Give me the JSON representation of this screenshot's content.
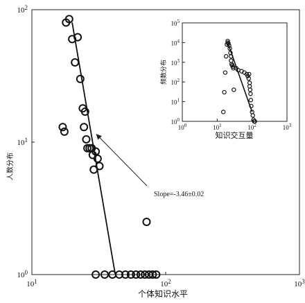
{
  "chart_data": [
    {
      "type": "scatter",
      "panel": "main",
      "xscale": "log",
      "yscale": "log",
      "xlim": [
        10,
        1000
      ],
      "ylim": [
        1,
        100
      ],
      "xlabel": "个体知识水平",
      "ylabel": "人数分布",
      "x_ticks": [
        {
          "value": 10,
          "base": "10",
          "exp": "1"
        },
        {
          "value": 100,
          "base": "10",
          "exp": "2"
        },
        {
          "value": 1000,
          "base": "10",
          "exp": "3"
        }
      ],
      "y_ticks": [
        {
          "value": 1,
          "base": "10",
          "exp": "0"
        },
        {
          "value": 10,
          "base": "10",
          "exp": "1"
        },
        {
          "value": 100,
          "base": "10",
          "exp": "2"
        }
      ],
      "grid": false,
      "series": [
        {
          "marker": "open-circle",
          "x": [
            18,
            19,
            20,
            21,
            22,
            23,
            24,
            25,
            17,
            17.5,
            24.5,
            25.5,
            26,
            27,
            28,
            28.5,
            30,
            31,
            32,
            29,
            72,
            30,
            35,
            40,
            45,
            50,
            55,
            60,
            65,
            70,
            75,
            80,
            85
          ],
          "y": [
            80,
            85,
            60,
            40,
            62,
            30,
            18,
            17,
            13,
            12,
            13,
            10.5,
            9,
            9,
            9,
            8,
            8.5,
            7.5,
            6.6,
            6.2,
            2.5,
            1,
            1,
            1,
            1,
            1,
            1,
            1,
            1,
            1,
            1,
            1,
            1
          ]
        }
      ],
      "fit_line": {
        "x": [
          20,
          42
        ],
        "y": [
          80,
          1
        ]
      },
      "annotation": {
        "text": "Slope=-3.46±0.02",
        "arrow_to": {
          "x": 29,
          "y": 12
        }
      }
    },
    {
      "type": "scatter",
      "panel": "inset",
      "xscale": "log",
      "yscale": "log",
      "xlim": [
        1,
        1000
      ],
      "ylim": [
        1,
        100000
      ],
      "xlabel": "知识交互量",
      "ylabel": "频数分布",
      "x_ticks": [
        {
          "value": 1,
          "base": "10",
          "exp": "0"
        },
        {
          "value": 10,
          "base": "10",
          "exp": "1"
        },
        {
          "value": 100,
          "base": "10",
          "exp": "2"
        },
        {
          "value": 1000,
          "base": "10",
          "exp": "3"
        }
      ],
      "y_ticks": [
        {
          "value": 1,
          "base": "10",
          "exp": "0"
        },
        {
          "value": 10,
          "base": "10",
          "exp": "1"
        },
        {
          "value": 100,
          "base": "10",
          "exp": "2"
        },
        {
          "value": 1000,
          "base": "10",
          "exp": "3"
        },
        {
          "value": 10000,
          "base": "10",
          "exp": "4"
        },
        {
          "value": 100000,
          "base": "10",
          "exp": "5"
        }
      ],
      "grid": false,
      "series": [
        {
          "marker": "open-circle",
          "x": [
            15,
            16,
            17,
            18,
            19,
            20,
            20,
            21,
            22,
            23,
            24,
            25,
            25,
            26,
            27,
            28,
            29,
            30,
            35,
            40,
            50,
            60,
            70,
            75,
            80,
            82,
            85,
            85,
            88,
            90,
            92,
            95,
            100,
            105,
            110,
            115,
            120
          ],
          "y": [
            3,
            30,
            300,
            2000,
            8000,
            12000,
            10000,
            9000,
            7000,
            5000,
            3000,
            2000,
            1200,
            800,
            700,
            600,
            500,
            40,
            500,
            400,
            350,
            300,
            250,
            200,
            150,
            250,
            90,
            60,
            40,
            25,
            12,
            6,
            3,
            2,
            1.2,
            1,
            1
          ]
        }
      ],
      "fit_line": {
        "x": [
          20,
          100
        ],
        "y": [
          10000,
          3
        ]
      }
    }
  ]
}
